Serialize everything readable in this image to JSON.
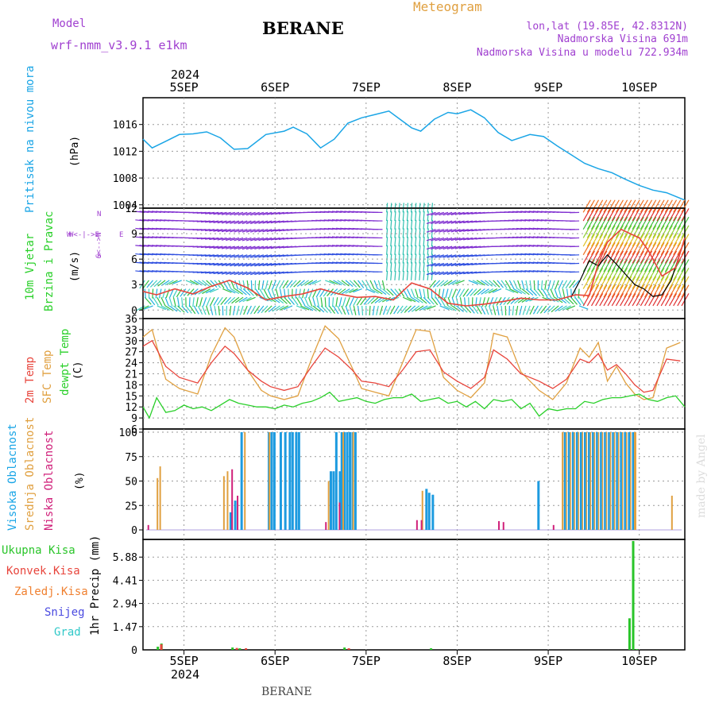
{
  "header": {
    "model_label": "Model",
    "model_name": "wrf-nmm_v3.9.1  e1km",
    "station": "BERANE",
    "chart_kind": "Meteogram",
    "lonlat": "lon,lat (19.85E, 42.8312N)",
    "altitude": "Nadmorska Visina 691m",
    "model_altitude": "Nadmorska Visina u modelu 722.934m",
    "footer_station": "BERANE",
    "watermark": "made by Angel"
  },
  "time_axis": {
    "year_top": "2024",
    "year_bottom": "2024",
    "ticks": [
      "5SEP",
      "6SEP",
      "7SEP",
      "8SEP",
      "9SEP",
      "10SEP"
    ],
    "range_days": [
      4.55,
      10.5
    ]
  },
  "colors": {
    "frame": "#000000",
    "grid": "#9a9a9a",
    "pressure": "#1aa5e6",
    "t2m": "#e8453c",
    "sfc": "#e0a040",
    "dew": "#2ad02a",
    "cloud_high": "#1d9be0",
    "cloud_mid": "#e0a040",
    "cloud_low": "#d0207a",
    "precip_total": "#2ac52a",
    "precip_conv": "#e8453c",
    "precip_fz": "#f08030",
    "precip_snow": "#4a4ae0",
    "precip_grad": "#30c8c8",
    "wind_speed": "#e8453c",
    "wind_gust": "#000000",
    "model_purple": "#a040d0",
    "chart_title": "#e0a040"
  },
  "chart_data": [
    {
      "type": "line",
      "panel": "pressure",
      "ylabel": "Pritisak na nivou mora",
      "unit": "(hPa)",
      "yticks": [
        1004,
        1008,
        1012,
        1016
      ],
      "ylim": [
        1003.5,
        1020
      ],
      "series": [
        {
          "name": "",
          "x": [
            4.55,
            4.65,
            4.8,
            4.95,
            5.1,
            5.25,
            5.4,
            5.55,
            5.7,
            5.9,
            6.1,
            6.2,
            6.35,
            6.5,
            6.65,
            6.8,
            6.95,
            7.1,
            7.25,
            7.4,
            7.5,
            7.6,
            7.75,
            7.9,
            8.0,
            8.15,
            8.3,
            8.45,
            8.6,
            8.8,
            8.95,
            9.1,
            9.25,
            9.4,
            9.55,
            9.7,
            9.85,
            10.0,
            10.15,
            10.3,
            10.5
          ],
          "values": [
            1013.8,
            1012.5,
            1013.5,
            1014.5,
            1014.6,
            1014.9,
            1014.0,
            1012.3,
            1012.4,
            1014.5,
            1015.0,
            1015.6,
            1014.6,
            1012.5,
            1013.8,
            1016.2,
            1017.0,
            1017.5,
            1018.0,
            1016.5,
            1015.5,
            1015.0,
            1016.8,
            1017.8,
            1017.6,
            1018.2,
            1017.0,
            1014.8,
            1013.6,
            1014.5,
            1014.2,
            1012.8,
            1011.5,
            1010.2,
            1009.4,
            1008.8,
            1007.8,
            1006.9,
            1006.2,
            1005.8,
            1004.7
          ]
        }
      ]
    },
    {
      "type": "line",
      "panel": "wind",
      "ylabel": "10m Vjetar Brzina i Pravac",
      "unit": "(m/s)",
      "direction_legend": {
        "n": "N",
        "s": "S",
        "w": "W",
        "e": "E",
        "sn": "S<-->N",
        "we": "W<-|->E"
      },
      "yticks": [
        0,
        3,
        6,
        9,
        12
      ],
      "ylim": [
        -1,
        12
      ],
      "series": [
        {
          "name": "speed",
          "x": [
            4.55,
            4.7,
            4.9,
            5.1,
            5.3,
            5.5,
            5.7,
            5.9,
            6.1,
            6.3,
            6.5,
            6.7,
            6.9,
            7.1,
            7.3,
            7.5,
            7.7,
            7.9,
            8.1,
            8.3,
            8.5,
            8.7,
            8.9,
            9.1,
            9.3,
            9.45,
            9.55,
            9.65,
            9.8,
            9.9,
            10.0,
            10.1,
            10.25,
            10.4,
            10.5
          ],
          "values": [
            2.2,
            1.8,
            2.5,
            1.9,
            2.8,
            3.5,
            2.6,
            1.2,
            1.6,
            1.9,
            2.5,
            1.9,
            1.5,
            1.6,
            1.2,
            3.2,
            2.5,
            0.8,
            0.5,
            0.7,
            1.0,
            1.4,
            1.2,
            1.2,
            1.8,
            1.7,
            5.5,
            8.0,
            9.5,
            9.0,
            8.5,
            7.0,
            4.0,
            5.0,
            8.5
          ]
        },
        {
          "name": "gust",
          "x": [
            9.25,
            9.35,
            9.45,
            9.55,
            9.65,
            9.75,
            9.85,
            9.95,
            10.05,
            10.15,
            10.25,
            10.35,
            10.45
          ],
          "values": [
            1.5,
            3.5,
            5.8,
            5.2,
            6.5,
            5.4,
            4.2,
            3.0,
            2.5,
            1.6,
            1.8,
            3.5,
            6.8
          ]
        }
      ]
    },
    {
      "type": "line",
      "panel": "temperature",
      "ylabel": "2m Temp SFC Temp dewpt Temp",
      "unit": "(C)",
      "yticks": [
        6,
        9,
        12,
        15,
        18,
        21,
        24,
        27,
        30,
        33,
        36
      ],
      "ylim": [
        6,
        36
      ],
      "series": [
        {
          "name": "2m Temp",
          "x": [
            4.55,
            4.65,
            4.8,
            4.95,
            5.15,
            5.3,
            5.45,
            5.55,
            5.7,
            5.85,
            5.95,
            6.1,
            6.25,
            6.4,
            6.55,
            6.7,
            6.85,
            6.95,
            7.1,
            7.25,
            7.4,
            7.55,
            7.7,
            7.85,
            8.0,
            8.15,
            8.3,
            8.4,
            8.55,
            8.7,
            8.9,
            9.05,
            9.2,
            9.35,
            9.45,
            9.55,
            9.65,
            9.75,
            9.85,
            9.95,
            10.05,
            10.15,
            10.3,
            10.45
          ],
          "values": [
            28.5,
            30.0,
            23.0,
            20.0,
            18.5,
            24.0,
            28.5,
            26.5,
            22.0,
            19.0,
            17.5,
            16.5,
            17.5,
            23.0,
            28.0,
            25.5,
            22.0,
            19.0,
            18.5,
            17.5,
            22.0,
            27.0,
            27.5,
            21.5,
            19.0,
            17.0,
            20.0,
            27.5,
            25.0,
            21.0,
            19.0,
            17.0,
            19.5,
            25.0,
            24.0,
            26.5,
            22.0,
            23.5,
            21.0,
            18.0,
            16.0,
            16.5,
            25.0,
            24.5
          ]
        },
        {
          "name": "SFC Temp",
          "x": [
            4.55,
            4.65,
            4.8,
            4.95,
            5.15,
            5.3,
            5.45,
            5.55,
            5.7,
            5.85,
            5.95,
            6.1,
            6.25,
            6.4,
            6.55,
            6.7,
            6.85,
            6.95,
            7.1,
            7.25,
            7.4,
            7.55,
            7.7,
            7.85,
            8.0,
            8.15,
            8.3,
            8.4,
            8.55,
            8.7,
            8.9,
            9.05,
            9.2,
            9.35,
            9.45,
            9.55,
            9.65,
            9.75,
            9.85,
            9.95,
            10.05,
            10.15,
            10.3,
            10.45
          ],
          "values": [
            31.0,
            33.0,
            19.5,
            17.0,
            15.5,
            26.0,
            33.5,
            31.0,
            22.0,
            16.5,
            15.0,
            14.0,
            15.0,
            25.0,
            34.0,
            30.5,
            22.5,
            17.0,
            16.0,
            15.0,
            24.0,
            33.0,
            32.5,
            20.0,
            16.5,
            14.5,
            18.5,
            32.0,
            31.0,
            21.5,
            16.5,
            14.0,
            18.5,
            28.0,
            25.5,
            29.5,
            19.0,
            23.0,
            18.5,
            15.5,
            14.0,
            14.5,
            28.0,
            29.5
          ]
        },
        {
          "name": "dewpt Temp",
          "x": [
            4.55,
            4.62,
            4.7,
            4.8,
            4.9,
            5.0,
            5.1,
            5.2,
            5.3,
            5.4,
            5.5,
            5.6,
            5.7,
            5.8,
            5.9,
            6.0,
            6.1,
            6.2,
            6.3,
            6.4,
            6.5,
            6.6,
            6.7,
            6.8,
            6.9,
            7.0,
            7.1,
            7.2,
            7.3,
            7.4,
            7.5,
            7.6,
            7.7,
            7.8,
            7.9,
            8.0,
            8.1,
            8.2,
            8.3,
            8.4,
            8.5,
            8.6,
            8.7,
            8.8,
            8.9,
            9.0,
            9.1,
            9.2,
            9.3,
            9.4,
            9.5,
            9.6,
            9.7,
            9.8,
            9.9,
            10.0,
            10.1,
            10.2,
            10.3,
            10.4,
            10.5
          ],
          "values": [
            12.0,
            9.0,
            14.5,
            10.5,
            11.0,
            12.5,
            11.5,
            12.0,
            11.0,
            12.5,
            14.0,
            13.0,
            12.5,
            12.0,
            12.0,
            11.5,
            12.5,
            12.0,
            13.0,
            13.5,
            14.5,
            16.0,
            13.5,
            14.0,
            14.5,
            13.5,
            13.0,
            14.0,
            14.5,
            14.5,
            15.5,
            13.5,
            14.0,
            14.5,
            13.0,
            13.5,
            12.0,
            13.5,
            11.5,
            14.0,
            13.5,
            14.0,
            11.5,
            13.0,
            9.5,
            11.5,
            11.0,
            11.5,
            11.5,
            13.5,
            13.0,
            14.0,
            14.5,
            14.5,
            15.0,
            15.5,
            14.0,
            13.5,
            14.5,
            15.0,
            12.0
          ]
        }
      ]
    },
    {
      "type": "bar",
      "panel": "clouds",
      "ylabel": "Visoka Oblacnost Srednja Oblacnost Niska Oblacnost",
      "unit": "(%)",
      "yticks": [
        0,
        25,
        50,
        75,
        100
      ],
      "ylim": [
        0,
        100
      ],
      "series": [
        {
          "name": "Visoka Oblacnost",
          "x": [
            5.5,
            5.55,
            5.62,
            5.92,
            5.95,
            5.98,
            6.05,
            6.1,
            6.15,
            6.18,
            6.22,
            6.25,
            6.6,
            6.63,
            6.66,
            6.7,
            6.72,
            6.75,
            6.78,
            6.81,
            6.84,
            6.87,
            7.65,
            7.68,
            7.72,
            8.88
          ],
          "values": [
            18,
            30,
            100,
            100,
            100,
            100,
            100,
            100,
            100,
            100,
            100,
            100,
            60,
            60,
            100,
            60,
            100,
            100,
            100,
            100,
            100,
            100,
            42,
            38,
            36,
            50
          ]
        },
        {
          "name": "Srednja Oblacnost",
          "x": [
            4.7,
            4.73,
            5.43,
            5.47,
            5.66,
            5.93,
            6.58,
            6.74,
            6.85,
            7.61,
            9.15,
            9.95,
            10.35
          ],
          "values": [
            53,
            65,
            55,
            60,
            100,
            100,
            50,
            100,
            100,
            40,
            100,
            100,
            35
          ]
        },
        {
          "name": "Niska Oblacnost",
          "x": [
            4.6,
            5.52,
            5.58,
            6.55,
            6.7,
            7.55,
            7.6,
            8.45,
            8.5,
            9.05
          ],
          "values": [
            5,
            62,
            35,
            8,
            28,
            10,
            10,
            9,
            8,
            5
          ]
        }
      ],
      "dense_band": {
        "x_start": 9.15,
        "x_end": 9.95,
        "value": 100
      }
    },
    {
      "type": "bar",
      "panel": "precipitation",
      "ylabel": "1hr Precip",
      "unit": "(mm)",
      "legend": [
        "Ukupna Kisa",
        "Konvek.Kisa",
        "Zaledj.Kisa",
        "Snijeg",
        "Grad"
      ],
      "yticks": [
        "1.47",
        "2.94",
        "4.41",
        "5.88"
      ],
      "ylim": [
        0,
        7.0
      ],
      "series": [
        {
          "name": "Ukupna Kisa",
          "x": [
            4.7,
            4.74,
            5.52,
            5.6,
            6.75,
            7.7,
            9.88,
            9.92,
            9.96
          ],
          "values": [
            0.2,
            0.4,
            0.15,
            0.1,
            0.15,
            0.1,
            2.0,
            6.9,
            0.05
          ]
        },
        {
          "name": "Konvek.Kisa",
          "x": [
            4.72,
            5.55,
            5.65,
            6.78
          ],
          "values": [
            0.35,
            0.12,
            0.1,
            0.1
          ]
        },
        {
          "name": "Zaledj.Kisa",
          "x": [],
          "values": []
        },
        {
          "name": "Snijeg",
          "x": [],
          "values": []
        },
        {
          "name": "Grad",
          "x": [],
          "values": []
        }
      ]
    }
  ]
}
